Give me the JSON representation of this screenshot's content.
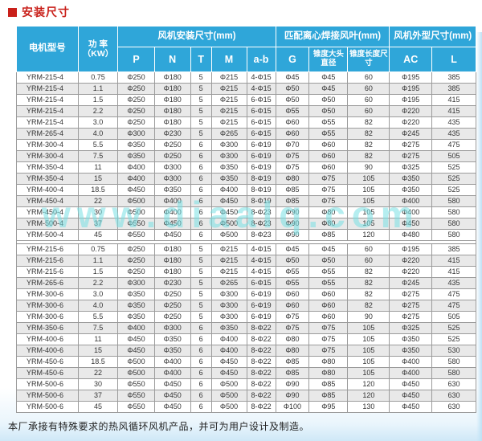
{
  "page": {
    "title": "安装尺寸",
    "footer": "本厂承接有特殊要求的热风循环风机产品，并可为用户设计及制造。",
    "watermark": "www.diaalq.com",
    "colors": {
      "header_blue": "#2fa6d9",
      "title_red": "#c9201a",
      "stripe_gray": "#e9e9e9",
      "watermark_cyan": "#78e0e4"
    }
  },
  "table": {
    "header": {
      "model": "电机型号",
      "power_line1": "功 率",
      "power_line2": "（KW）",
      "group_install": "风机安装尺寸(mm)",
      "group_blade": "匹配离心焊接风叶(mm)",
      "group_outline": "风机外型尺寸(mm)",
      "sub": [
        "P",
        "N",
        "T",
        "M",
        "a-b",
        "G",
        "锥度大头直径",
        "锥度长度尺寸",
        "AC",
        "L"
      ]
    },
    "sections": [
      {
        "name": "4-pole",
        "rows": [
          [
            "YRM-215-4",
            "0.75",
            "Φ250",
            "Φ180",
            "5",
            "Φ215",
            "4-Φ15",
            "Φ45",
            "Φ45",
            "60",
            "Φ195",
            "385"
          ],
          [
            "YRM-215-4",
            "1.1",
            "Φ250",
            "Φ180",
            "5",
            "Φ215",
            "4-Φ15",
            "Φ50",
            "Φ45",
            "60",
            "Φ195",
            "385"
          ],
          [
            "YRM-215-4",
            "1.5",
            "Φ250",
            "Φ180",
            "5",
            "Φ215",
            "6-Φ15",
            "Φ50",
            "Φ50",
            "60",
            "Φ195",
            "415"
          ],
          [
            "YRM-215-4",
            "2.2",
            "Φ250",
            "Φ180",
            "5",
            "Φ215",
            "6-Φ15",
            "Φ55",
            "Φ50",
            "60",
            "Φ220",
            "415"
          ],
          [
            "YRM-215-4",
            "3.0",
            "Φ250",
            "Φ180",
            "5",
            "Φ215",
            "6-Φ15",
            "Φ60",
            "Φ55",
            "82",
            "Φ220",
            "435"
          ],
          [
            "YRM-265-4",
            "4.0",
            "Φ300",
            "Φ230",
            "5",
            "Φ265",
            "6-Φ15",
            "Φ60",
            "Φ55",
            "82",
            "Φ245",
            "435"
          ],
          [
            "YRM-300-4",
            "5.5",
            "Φ350",
            "Φ250",
            "6",
            "Φ300",
            "6-Φ19",
            "Φ70",
            "Φ60",
            "82",
            "Φ275",
            "475"
          ],
          [
            "YRM-300-4",
            "7.5",
            "Φ350",
            "Φ250",
            "6",
            "Φ300",
            "6-Φ19",
            "Φ75",
            "Φ60",
            "82",
            "Φ275",
            "505"
          ],
          [
            "YRM-350-4",
            "11",
            "Φ400",
            "Φ300",
            "6",
            "Φ350",
            "6-Φ19",
            "Φ75",
            "Φ60",
            "90",
            "Φ325",
            "525"
          ],
          [
            "YRM-350-4",
            "15",
            "Φ400",
            "Φ300",
            "6",
            "Φ350",
            "8-Φ19",
            "Φ80",
            "Φ75",
            "105",
            "Φ350",
            "525"
          ],
          [
            "YRM-400-4",
            "18.5",
            "Φ450",
            "Φ350",
            "6",
            "Φ400",
            "8-Φ19",
            "Φ85",
            "Φ75",
            "105",
            "Φ350",
            "525"
          ],
          [
            "YRM-450-4",
            "22",
            "Φ500",
            "Φ400",
            "6",
            "Φ450",
            "8-Φ19",
            "Φ85",
            "Φ75",
            "105",
            "Φ400",
            "580"
          ],
          [
            "YRM-450-4",
            "30",
            "Φ500",
            "Φ400",
            "6",
            "Φ450",
            "8-Φ23",
            "Φ90",
            "Φ80",
            "105",
            "Φ400",
            "580"
          ],
          [
            "YRM-500-4",
            "37",
            "Φ550",
            "Φ450",
            "6",
            "Φ500",
            "8-Φ23",
            "Φ90",
            "Φ80",
            "105",
            "Φ450",
            "580"
          ],
          [
            "YRM-500-4",
            "45",
            "Φ550",
            "Φ450",
            "6",
            "Φ500",
            "8-Φ23",
            "Φ90",
            "Φ85",
            "120",
            "Φ480",
            "580"
          ]
        ]
      },
      {
        "name": "6-pole",
        "rows": [
          [
            "YRM-215-6",
            "0.75",
            "Φ250",
            "Φ180",
            "5",
            "Φ215",
            "4-Φ15",
            "Φ45",
            "Φ45",
            "60",
            "Φ195",
            "385"
          ],
          [
            "YRM-215-6",
            "1.1",
            "Φ250",
            "Φ180",
            "5",
            "Φ215",
            "4-Φ15",
            "Φ50",
            "Φ50",
            "60",
            "Φ220",
            "415"
          ],
          [
            "YRM-215-6",
            "1.5",
            "Φ250",
            "Φ180",
            "5",
            "Φ215",
            "4-Φ15",
            "Φ55",
            "Φ55",
            "82",
            "Φ220",
            "415"
          ],
          [
            "YRM-265-6",
            "2.2",
            "Φ300",
            "Φ230",
            "5",
            "Φ265",
            "6-Φ15",
            "Φ55",
            "Φ55",
            "82",
            "Φ245",
            "435"
          ],
          [
            "YRM-300-6",
            "3.0",
            "Φ350",
            "Φ250",
            "5",
            "Φ300",
            "6-Φ19",
            "Φ60",
            "Φ60",
            "82",
            "Φ275",
            "475"
          ],
          [
            "YRM-300-6",
            "4.0",
            "Φ350",
            "Φ250",
            "5",
            "Φ300",
            "6-Φ19",
            "Φ60",
            "Φ60",
            "82",
            "Φ275",
            "475"
          ],
          [
            "YRM-300-6",
            "5.5",
            "Φ350",
            "Φ250",
            "5",
            "Φ300",
            "6-Φ19",
            "Φ75",
            "Φ60",
            "90",
            "Φ275",
            "505"
          ],
          [
            "YRM-350-6",
            "7.5",
            "Φ400",
            "Φ300",
            "6",
            "Φ350",
            "8-Φ22",
            "Φ75",
            "Φ75",
            "105",
            "Φ325",
            "525"
          ],
          [
            "YRM-400-6",
            "11",
            "Φ450",
            "Φ350",
            "6",
            "Φ400",
            "8-Φ22",
            "Φ80",
            "Φ75",
            "105",
            "Φ350",
            "525"
          ],
          [
            "YRM-400-6",
            "15",
            "Φ450",
            "Φ350",
            "6",
            "Φ400",
            "8-Φ22",
            "Φ80",
            "Φ75",
            "105",
            "Φ350",
            "530"
          ],
          [
            "YRM-450-6",
            "18.5",
            "Φ500",
            "Φ400",
            "6",
            "Φ450",
            "8-Φ22",
            "Φ85",
            "Φ80",
            "105",
            "Φ400",
            "580"
          ],
          [
            "YRM-450-6",
            "22",
            "Φ500",
            "Φ400",
            "6",
            "Φ450",
            "8-Φ22",
            "Φ85",
            "Φ80",
            "105",
            "Φ400",
            "580"
          ],
          [
            "YRM-500-6",
            "30",
            "Φ550",
            "Φ450",
            "6",
            "Φ500",
            "8-Φ22",
            "Φ90",
            "Φ85",
            "120",
            "Φ450",
            "630"
          ],
          [
            "YRM-500-6",
            "37",
            "Φ550",
            "Φ450",
            "6",
            "Φ500",
            "8-Φ22",
            "Φ90",
            "Φ85",
            "120",
            "Φ450",
            "630"
          ],
          [
            "YRM-500-6",
            "45",
            "Φ550",
            "Φ450",
            "6",
            "Φ500",
            "8-Φ22",
            "Φ100",
            "Φ95",
            "130",
            "Φ450",
            "630"
          ]
        ]
      }
    ]
  }
}
